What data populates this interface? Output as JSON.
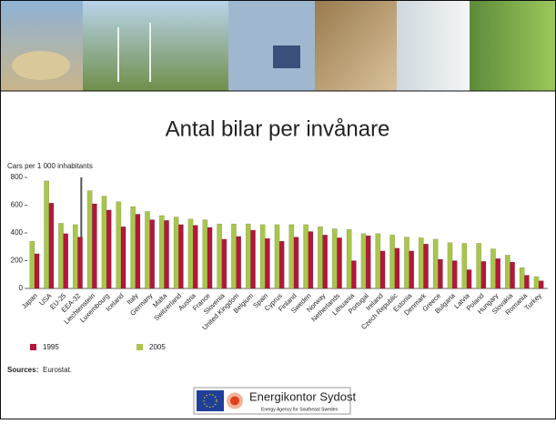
{
  "chart_data": {
    "type": "bar",
    "title": "Antal bilar per invånare",
    "y_label": "Cars per 1 000 inhabitants",
    "categories": [
      "Japan",
      "USA",
      "EU-25",
      "EEA-32",
      "Liechtenstein",
      "Luxembourg",
      "Iceland",
      "Italy",
      "Germany",
      "Malta",
      "Switzerland",
      "Austria",
      "France",
      "Slovenia",
      "United Kingdom",
      "Belgium",
      "Spain",
      "Cyprus",
      "Finland",
      "Sweden",
      "Norway",
      "Netherlands",
      "Lithuania",
      "Portugal",
      "Ireland",
      "Czech Republic",
      "Estonia",
      "Denmark",
      "Greece",
      "Bulgaria",
      "Latvia",
      "Poland",
      "Hungary",
      "Slovakia",
      "Romania",
      "Turkey"
    ],
    "series": [
      {
        "name": "1995",
        "color": "#b3173c",
        "values": [
          250,
          615,
          395,
          370,
          610,
          565,
          445,
          535,
          495,
          490,
          460,
          455,
          440,
          355,
          375,
          420,
          360,
          340,
          370,
          410,
          385,
          365,
          200,
          380,
          270,
          290,
          270,
          320,
          210,
          200,
          135,
          195,
          215,
          190,
          95,
          55
        ]
      },
      {
        "name": "2005",
        "color": "#a9c64a",
        "values": [
          340,
          775,
          470,
          460,
          705,
          665,
          625,
          590,
          555,
          525,
          515,
          500,
          495,
          465,
          465,
          465,
          460,
          460,
          460,
          460,
          445,
          430,
          425,
          395,
          395,
          385,
          370,
          365,
          355,
          330,
          325,
          325,
          285,
          240,
          150,
          85
        ]
      }
    ],
    "ylim": [
      0,
      800
    ],
    "yticks": [
      0,
      200,
      400,
      600,
      800
    ],
    "grid": false,
    "source_label": "Sources:",
    "source": "Eurostat."
  },
  "logo": {
    "name": "Energikontor Sydost",
    "tagline": "Energy Agency for Southeast Sweden"
  }
}
